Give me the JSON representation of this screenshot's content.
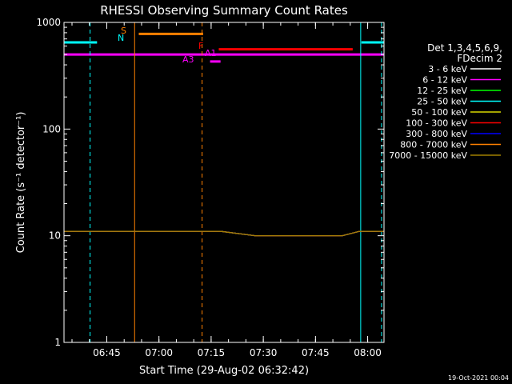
{
  "chart_data": {
    "type": "line",
    "title": "RHESSI Observing Summary Count Rates",
    "xlabel": "Start Time (29-Aug-02 06:32:42)",
    "ylabel": "Count Rate (s⁻¹ detector⁻¹)",
    "x_unit": "minutes since 06:32:42",
    "xlim": [
      0,
      92
    ],
    "ylim": [
      1,
      1000
    ],
    "y_scale": "log",
    "grid": false,
    "x_ticks": [
      {
        "x": 12.3,
        "label": "06:45"
      },
      {
        "x": 27.3,
        "label": "07:00"
      },
      {
        "x": 42.3,
        "label": "07:15"
      },
      {
        "x": 57.3,
        "label": "07:30"
      },
      {
        "x": 72.3,
        "label": "07:45"
      },
      {
        "x": 87.3,
        "label": "08:00"
      }
    ],
    "y_ticks": [
      {
        "y": 1,
        "label": "1"
      },
      {
        "y": 10,
        "label": "10"
      },
      {
        "y": 100,
        "label": "100"
      },
      {
        "y": 1000,
        "label": "1000"
      }
    ],
    "legend": {
      "placement": "right",
      "header": [
        "Det 1,3,4,5,6,9,",
        "FDecim 2"
      ],
      "entries": [
        {
          "label": "3 - 6 keV",
          "color": "#ffffff"
        },
        {
          "label": "6 - 12 keV",
          "color": "#ff00ff"
        },
        {
          "label": "12 - 25 keV",
          "color": "#00ff00"
        },
        {
          "label": "25 - 50 keV",
          "color": "#00ffff"
        },
        {
          "label": "50 - 100 keV",
          "color": "#d8d800"
        },
        {
          "label": "100 - 300 keV",
          "color": "#ff0000"
        },
        {
          "label": "300 - 800 keV",
          "color": "#0000ff"
        },
        {
          "label": "800 - 7000 keV",
          "color": "#ff8000"
        },
        {
          "label": "7000 - 15000 keV",
          "color": "#a08000"
        }
      ]
    },
    "annotations": [
      {
        "label": "N",
        "color": "#00ffff"
      },
      {
        "label": "S",
        "color": "#ff8000"
      },
      {
        "label": "F",
        "color": "#ff0000"
      },
      {
        "label": "A3",
        "color": "#ff00ff"
      },
      {
        "label": "A1",
        "color": "#ff00ff"
      }
    ],
    "flag_bars": [
      {
        "label": "SAA",
        "color": "#00ffff",
        "y": 650,
        "ranges": [
          [
            0,
            9.5
          ],
          [
            85.5,
            92
          ]
        ]
      },
      {
        "label": "S",
        "color": "#ff8000",
        "y": 780,
        "ranges": [
          [
            21.5,
            40
          ]
        ]
      },
      {
        "label": "F",
        "color": "#ff0000",
        "y": 560,
        "ranges": [
          [
            44.5,
            83
          ]
        ]
      },
      {
        "label": "A",
        "color": "#ff00ff",
        "y": 500,
        "ranges": [
          [
            0,
            92
          ]
        ]
      },
      {
        "label": "A3",
        "color": "#ff00ff",
        "y": 430,
        "ranges": [
          [
            42,
            45
          ]
        ]
      }
    ],
    "vlines": [
      {
        "x": 7.5,
        "color": "#00ffff",
        "style": "dashed"
      },
      {
        "x": 20.3,
        "color": "#ff8000",
        "style": "solid"
      },
      {
        "x": 39.7,
        "color": "#ff8000",
        "style": "dashed"
      },
      {
        "x": 85.3,
        "color": "#00ffff",
        "style": "solid"
      },
      {
        "x": 91.3,
        "color": "#00ffff",
        "style": "dashed"
      }
    ],
    "series": [
      {
        "name": "3 - 6 keV",
        "color": "#ffffff",
        "points": [
          [
            0,
            11
          ],
          [
            15,
            11
          ],
          [
            20,
            11
          ],
          [
            25,
            11
          ],
          [
            40,
            11
          ],
          [
            45,
            11
          ],
          [
            55,
            10
          ],
          [
            60,
            10
          ],
          [
            70,
            10
          ],
          [
            80,
            10
          ],
          [
            85,
            11
          ],
          [
            92,
            11
          ]
        ]
      },
      {
        "name": "6 - 12 keV",
        "color": "#ff00ff",
        "points": [
          [
            0,
            11
          ],
          [
            15,
            11
          ],
          [
            20,
            11
          ],
          [
            25,
            11
          ],
          [
            40,
            11
          ],
          [
            45,
            11
          ],
          [
            55,
            10
          ],
          [
            60,
            10
          ],
          [
            70,
            10
          ],
          [
            80,
            10
          ],
          [
            85,
            11
          ],
          [
            92,
            11
          ]
        ]
      },
      {
        "name": "12 - 25 keV",
        "color": "#00ff00",
        "points": [
          [
            0,
            11
          ],
          [
            15,
            11
          ],
          [
            20,
            11
          ],
          [
            25,
            11
          ],
          [
            40,
            11
          ],
          [
            45,
            11
          ],
          [
            55,
            10
          ],
          [
            60,
            10
          ],
          [
            70,
            10
          ],
          [
            80,
            10
          ],
          [
            85,
            11
          ],
          [
            92,
            11
          ]
        ]
      },
      {
        "name": "25 - 50 keV",
        "color": "#00ffff",
        "points": [
          [
            0,
            11
          ],
          [
            15,
            11
          ],
          [
            20,
            11
          ],
          [
            25,
            11
          ],
          [
            40,
            11
          ],
          [
            45,
            11
          ],
          [
            55,
            10
          ],
          [
            60,
            10
          ],
          [
            70,
            10
          ],
          [
            80,
            10
          ],
          [
            85,
            11
          ],
          [
            92,
            11
          ]
        ]
      },
      {
        "name": "50 - 100 keV",
        "color": "#d8d800",
        "points": [
          [
            0,
            11
          ],
          [
            15,
            11
          ],
          [
            20,
            11
          ],
          [
            25,
            11
          ],
          [
            40,
            11
          ],
          [
            45,
            11
          ],
          [
            55,
            10
          ],
          [
            60,
            10
          ],
          [
            70,
            10
          ],
          [
            80,
            10
          ],
          [
            85,
            11
          ],
          [
            92,
            11
          ]
        ]
      },
      {
        "name": "100 - 300 keV",
        "color": "#ff0000",
        "points": [
          [
            0,
            11
          ],
          [
            15,
            11
          ],
          [
            20,
            11
          ],
          [
            25,
            11
          ],
          [
            40,
            11
          ],
          [
            45,
            11
          ],
          [
            55,
            10
          ],
          [
            60,
            10
          ],
          [
            70,
            10
          ],
          [
            80,
            10
          ],
          [
            85,
            11
          ],
          [
            92,
            11
          ]
        ]
      },
      {
        "name": "300 - 800 keV",
        "color": "#0000ff",
        "points": [
          [
            0,
            11
          ],
          [
            15,
            11
          ],
          [
            20,
            11
          ],
          [
            25,
            11
          ],
          [
            40,
            11
          ],
          [
            45,
            11
          ],
          [
            55,
            10
          ],
          [
            60,
            10
          ],
          [
            70,
            10
          ],
          [
            80,
            10
          ],
          [
            85,
            11
          ],
          [
            92,
            11
          ]
        ]
      },
      {
        "name": "800 - 7000 keV",
        "color": "#ff8000",
        "points": [
          [
            0,
            11
          ],
          [
            15,
            11
          ],
          [
            20,
            11
          ],
          [
            25,
            11
          ],
          [
            40,
            11
          ],
          [
            45,
            11
          ],
          [
            55,
            10
          ],
          [
            60,
            10
          ],
          [
            70,
            10
          ],
          [
            80,
            10
          ],
          [
            85,
            11
          ],
          [
            92,
            11
          ]
        ]
      },
      {
        "name": "7000 - 15000 keV",
        "color": "#a08000",
        "points": [
          [
            0,
            11
          ],
          [
            15,
            11
          ],
          [
            20,
            11
          ],
          [
            25,
            11
          ],
          [
            40,
            11
          ],
          [
            45,
            11
          ],
          [
            55,
            10
          ],
          [
            60,
            10
          ],
          [
            70,
            10
          ],
          [
            80,
            10
          ],
          [
            85,
            11
          ],
          [
            92,
            11
          ]
        ]
      }
    ],
    "footer_timestamp": "19-Oct-2021 00:04"
  }
}
